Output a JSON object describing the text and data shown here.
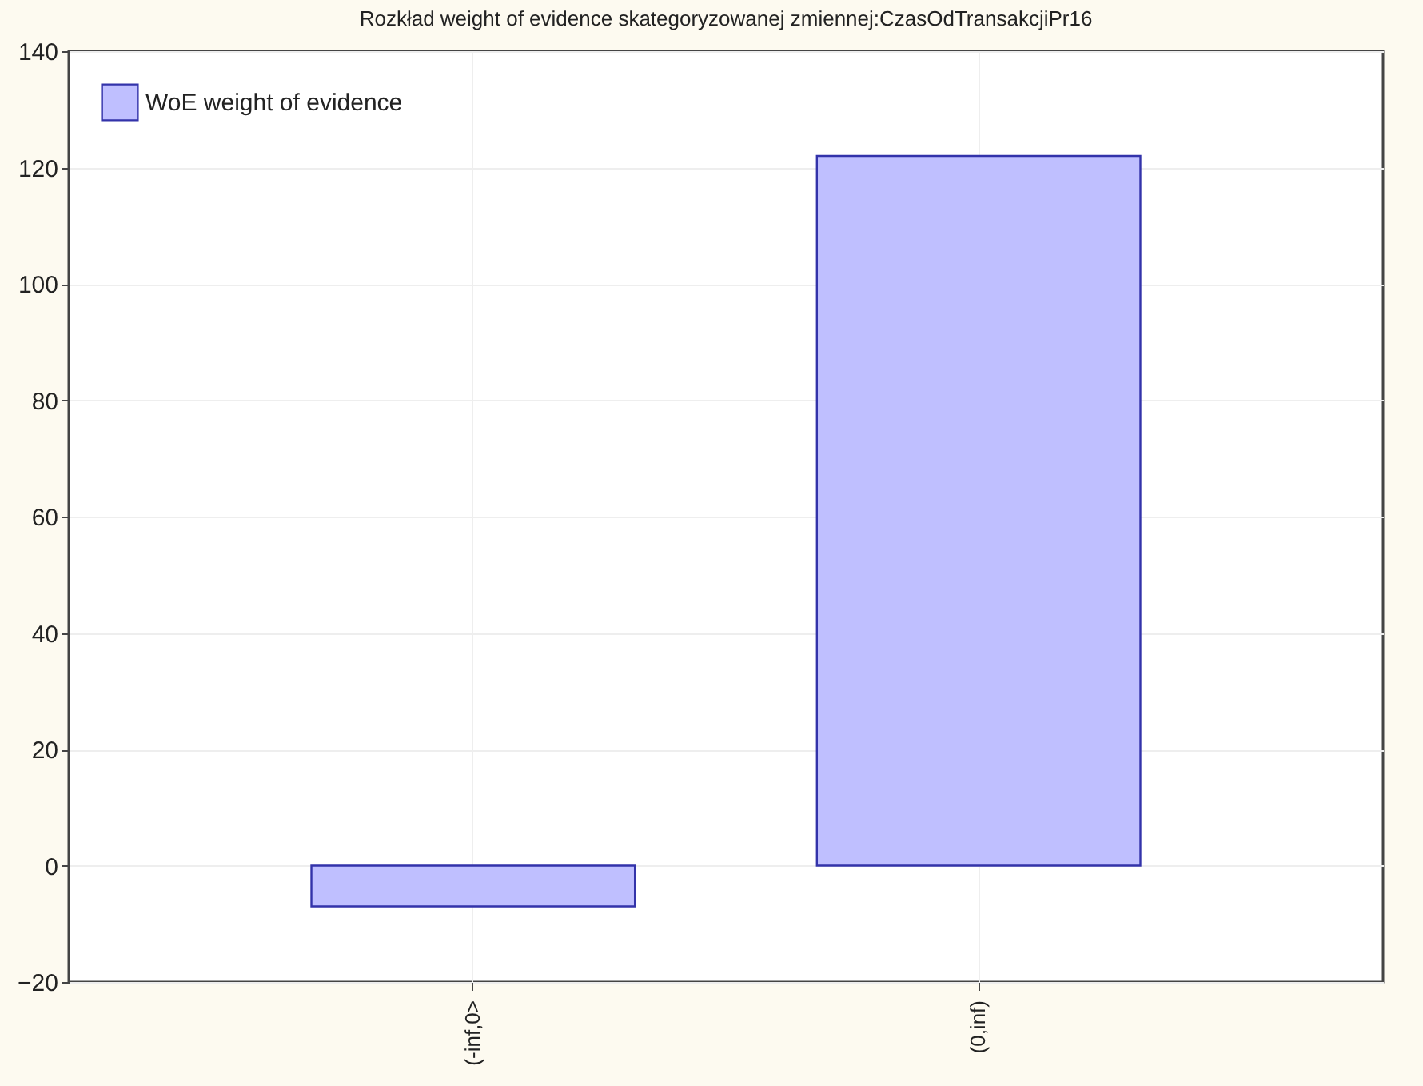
{
  "chart_data": {
    "type": "bar",
    "title": "Rozkład weight of evidence skategoryzowanej zmiennej:CzasOdTransakcjiPr16",
    "categories": [
      "(-inf,0>",
      "(0,inf)"
    ],
    "series": [
      {
        "name": "WoE weight of evidence",
        "color": "#bfbfff",
        "values": [
          -7,
          122
        ]
      }
    ],
    "ylim": [
      -20,
      140
    ],
    "yticks": [
      -20,
      0,
      20,
      40,
      60,
      80,
      100,
      120,
      140
    ],
    "grid": true,
    "legend": "top left"
  }
}
